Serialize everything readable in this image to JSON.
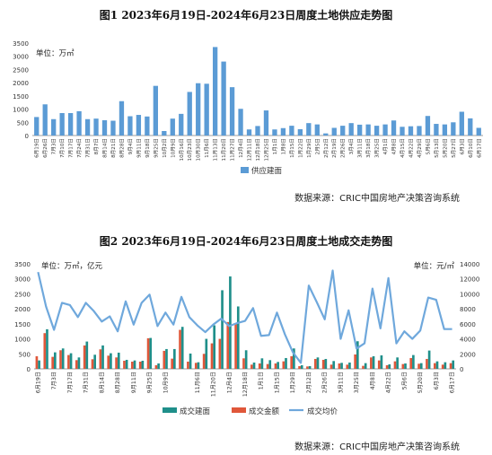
{
  "chart_data": [
    {
      "type": "bar",
      "title": "图1 2023年6月19日-2024年6月23日周度土地供应走势图",
      "unit_label": "单位：万㎡",
      "ylim": [
        0,
        3500
      ],
      "yticks": [
        0,
        500,
        1000,
        1500,
        2000,
        2500,
        3000,
        3500
      ],
      "grid": false,
      "legend_position": "bottom",
      "categories": [
        "6月19日",
        "6月26日",
        "7月3日",
        "7月10日",
        "7月17日",
        "7月24日",
        "7月31日",
        "8月7日",
        "8月14日",
        "8月21日",
        "8月28日",
        "9月4日",
        "9月11日",
        "9月18日",
        "9月25日",
        "10月2日",
        "10月9日",
        "10月16日",
        "10月23日",
        "10月30日",
        "11月6日",
        "11月13日",
        "11月20日",
        "11月27日",
        "12月4日",
        "12月11日",
        "12月18日",
        "12月25日",
        "1月1日",
        "1月8日",
        "1月15日",
        "1月22日",
        "1月29日",
        "2月5日",
        "2月12日",
        "2月19日",
        "2月26日",
        "3月4日",
        "3月11日",
        "3月18日",
        "3月25日",
        "4月1日",
        "4月8日",
        "4月15日",
        "4月22日",
        "4月29日",
        "5月6日",
        "5月13日",
        "5月20日",
        "5月27日",
        "6月3日",
        "6月10日",
        "6月17日"
      ],
      "series": [
        {
          "name": "供应建面",
          "color": "#5b9bd5",
          "values": [
            700,
            1180,
            620,
            850,
            850,
            920,
            620,
            640,
            580,
            560,
            1300,
            730,
            780,
            720,
            1880,
            170,
            640,
            820,
            1650,
            1980,
            1960,
            3350,
            2800,
            1830,
            1010,
            230,
            360,
            950,
            230,
            280,
            370,
            240,
            470,
            420,
            80,
            290,
            370,
            470,
            410,
            420,
            370,
            420,
            570,
            330,
            350,
            360,
            740,
            440,
            420,
            500,
            900,
            650,
            290
          ]
        }
      ],
      "source": "数据来源：CRIC中国房地产决策咨询系统"
    },
    {
      "type": "bar",
      "title": "图2 2023年6月19日-2024年6月23日周度土地成交走势图",
      "left_unit_label": "单位：万㎡，亿元",
      "right_unit_label": "单位：元/㎡",
      "ylim": [
        0,
        3500
      ],
      "yticks": [
        0,
        500,
        1000,
        1500,
        2000,
        2500,
        3000,
        3500
      ],
      "y2lim": [
        0,
        14000
      ],
      "y2ticks": [
        0,
        2000,
        4000,
        6000,
        8000,
        10000,
        12000,
        14000
      ],
      "grid": false,
      "legend_position": "bottom",
      "categories": [
        "6月19日",
        "6月26日",
        "7月3日",
        "7月10日",
        "7月17日",
        "7月24日",
        "7月31日",
        "8月7日",
        "8月14日",
        "8月21日",
        "8月28日",
        "9月4日",
        "9月11日",
        "9月18日",
        "9月25日",
        "10月2日",
        "10月9日",
        "10月16日",
        "10月23日",
        "10月30日",
        "11月6日",
        "11月13日",
        "11月20日",
        "11月27日",
        "12月4日",
        "12月11日",
        "12月18日",
        "12月25日",
        "1月1日",
        "1月8日",
        "1月15日",
        "1月22日",
        "1月29日",
        "2月5日",
        "2月12日",
        "2月19日",
        "2月26日",
        "3月4日",
        "3月11日",
        "3月18日",
        "3月25日",
        "4月1日",
        "4月8日",
        "4月15日",
        "4月22日",
        "4月29日",
        "5月6日",
        "5月13日",
        "5月20日",
        "5月27日",
        "6月3日",
        "6月10日",
        "6月17日"
      ],
      "x_tick_labels": [
        "6月19日",
        "7月3日",
        "7月17日",
        "7月31日",
        "8月14日",
        "8月28日",
        "9月11日",
        "9月25日",
        "10月9日",
        "11月6日",
        "11月20日",
        "12月4日",
        "12月18日",
        "1月1日",
        "1月15日",
        "1月29日",
        "2月12日",
        "2月26日",
        "3月11日",
        "3月25日",
        "4月8日",
        "4月22日",
        "5月6日",
        "5月20日",
        "6月3日",
        "6月17日"
      ],
      "series": [
        {
          "name": "成交建面",
          "axis": "left",
          "color": "#1f8f8a",
          "values": [
            280,
            1320,
            550,
            680,
            520,
            380,
            910,
            470,
            780,
            520,
            540,
            300,
            280,
            270,
            1030,
            180,
            660,
            660,
            1400,
            510,
            220,
            1000,
            1450,
            2620,
            3080,
            2080,
            620,
            210,
            350,
            290,
            230,
            360,
            680,
            120,
            90,
            380,
            330,
            260,
            200,
            210,
            920,
            190,
            420,
            450,
            150,
            380,
            180,
            460,
            190,
            610,
            250,
            220,
            280
          ]
        },
        {
          "name": "成交金额",
          "axis": "left",
          "color": "#e0573a",
          "values": [
            420,
            1190,
            400,
            620,
            460,
            290,
            780,
            320,
            650,
            440,
            380,
            270,
            240,
            240,
            1020,
            120,
            600,
            340,
            1300,
            240,
            200,
            500,
            850,
            1000,
            1560,
            1500,
            350,
            140,
            180,
            160,
            180,
            250,
            420,
            90,
            80,
            330,
            300,
            140,
            180,
            140,
            480,
            100,
            380,
            280,
            120,
            250,
            160,
            360,
            170,
            330,
            190,
            140,
            190
          ]
        },
        {
          "name": "成交均价",
          "axis": "right",
          "color": "#6fa8dc",
          "values": [
            12900,
            8300,
            5200,
            8800,
            8500,
            6900,
            8800,
            7700,
            6300,
            7000,
            5000,
            9000,
            5900,
            8800,
            9900,
            5700,
            7500,
            5900,
            9600,
            6900,
            5800,
            4900,
            5900,
            6700,
            5700,
            6100,
            6400,
            8100,
            4400,
            4500,
            7500,
            4600,
            2200,
            800,
            11100,
            8900,
            6600,
            13100,
            4000,
            7800,
            2700,
            3400,
            10700,
            5400,
            12100,
            3400,
            5000,
            4000,
            5100,
            9500,
            9200,
            5300,
            5300
          ]
        }
      ],
      "source": "数据来源：CRIC中国房地产决策咨询系统"
    }
  ]
}
